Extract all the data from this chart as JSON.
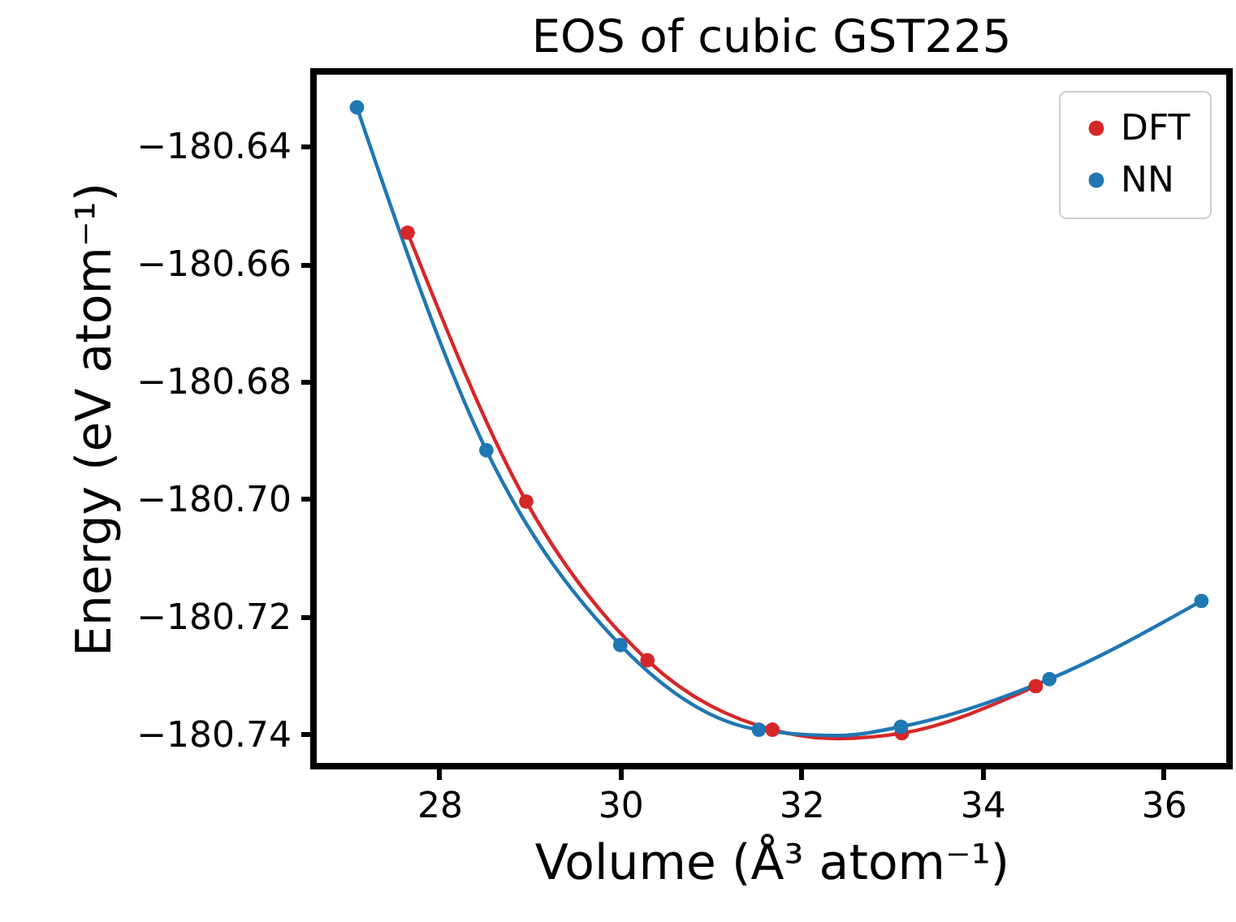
{
  "chart_data": {
    "type": "scatter",
    "title": "EOS of cubic GST225",
    "xlabel": "Volume (Å³ atom⁻¹)",
    "ylabel": "Energy (eV atom⁻¹)",
    "series": [
      {
        "name": "DFT",
        "color": "#d62728",
        "x": [
          27.65,
          28.96,
          30.3,
          31.68,
          33.11,
          34.59
        ],
        "values": [
          -180.6547,
          -180.7004,
          -180.7274,
          -180.7392,
          -180.7398,
          -180.7318
        ]
      },
      {
        "name": "NN",
        "color": "#1f77b4",
        "x": [
          27.09,
          28.52,
          30.0,
          31.53,
          33.1,
          34.74,
          36.42
        ],
        "values": [
          -180.6334,
          -180.6917,
          -180.7248,
          -180.7392,
          -180.7387,
          -180.7306,
          -180.7173
        ]
      },
      {
        "type": "line",
        "marker": "none",
        "color": "#d62728",
        "x": [
          27.65,
          28.96,
          30.3,
          31.68,
          32.4,
          33.11,
          34.59
        ],
        "values": [
          -180.6547,
          -180.7004,
          -180.7274,
          -180.7392,
          -180.7407,
          -180.7398,
          -180.7318
        ]
      },
      {
        "type": "line",
        "marker": "none",
        "color": "#1f77b4",
        "x": [
          27.09,
          28.52,
          30.0,
          31.53,
          32.4,
          33.1,
          34.74,
          36.42
        ],
        "values": [
          -180.6334,
          -180.6917,
          -180.7248,
          -180.7392,
          -180.7402,
          -180.7387,
          -180.7306,
          -180.7173
        ]
      }
    ],
    "xlim": [
      26.61,
      36.73
    ],
    "xticks": [
      28,
      30,
      32,
      34,
      36
    ],
    "ylim": [
      -180.7454,
      -180.6273
    ],
    "yticks": [
      {
        "value": -180.74,
        "label": "−180.74"
      },
      {
        "value": -180.72,
        "label": "−180.72"
      },
      {
        "value": -180.7,
        "label": "−180.70"
      },
      {
        "value": -180.68,
        "label": "−180.68"
      },
      {
        "value": -180.66,
        "label": "−180.66"
      },
      {
        "value": -180.64,
        "label": "−180.64"
      }
    ],
    "marker": "circle",
    "legend": "top right",
    "grid": false
  }
}
